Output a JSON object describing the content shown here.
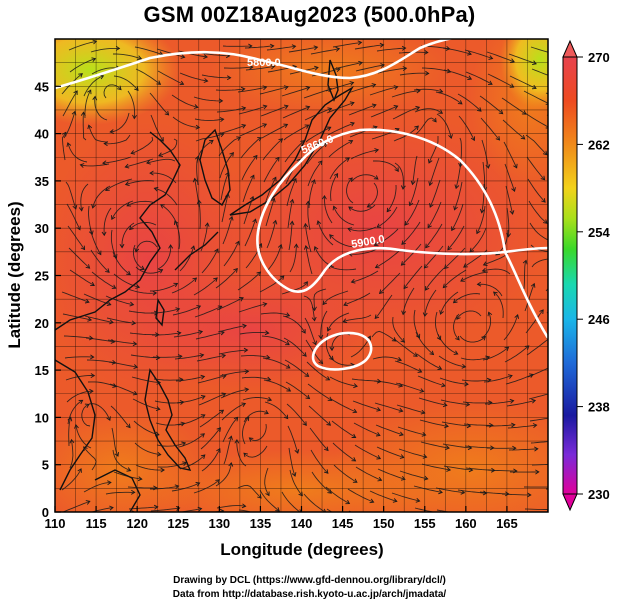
{
  "title": "GSM 00Z18Aug2023 (500.0hPa)",
  "x_axis": {
    "label": "Longitude (degrees)",
    "ticks": [
      "110",
      "115",
      "120",
      "125",
      "130",
      "135",
      "140",
      "145",
      "150",
      "155",
      "160",
      "165"
    ],
    "range": [
      110,
      170
    ]
  },
  "y_axis": {
    "label": "Latitude  (degrees)",
    "ticks": [
      "0",
      "5",
      "10",
      "15",
      "20",
      "25",
      "30",
      "35",
      "40",
      "45"
    ],
    "range": [
      0,
      50
    ]
  },
  "colorbar": {
    "ticks": [
      "270",
      "262",
      "254",
      "246",
      "238",
      "230"
    ],
    "range": [
      230,
      270
    ],
    "colors": [
      "#e0009a",
      "#7a2ad8",
      "#1a1aa0",
      "#1f6ad8",
      "#1ab6e8",
      "#19d8b0",
      "#3ad82a",
      "#a8e01a",
      "#f2d21a",
      "#f08a1a",
      "#ee4a20",
      "#e8434e"
    ]
  },
  "contours": [
    {
      "label": "5800.0"
    },
    {
      "label": "5860.0"
    },
    {
      "label": "5900.0"
    }
  ],
  "credits": {
    "line1": "Drawing by DCL (https://www.gfd-dennou.org/library/dcl/)",
    "line2": "Data from http://database.rish.kyoto-u.ac.jp/arch/jmadata/"
  }
}
